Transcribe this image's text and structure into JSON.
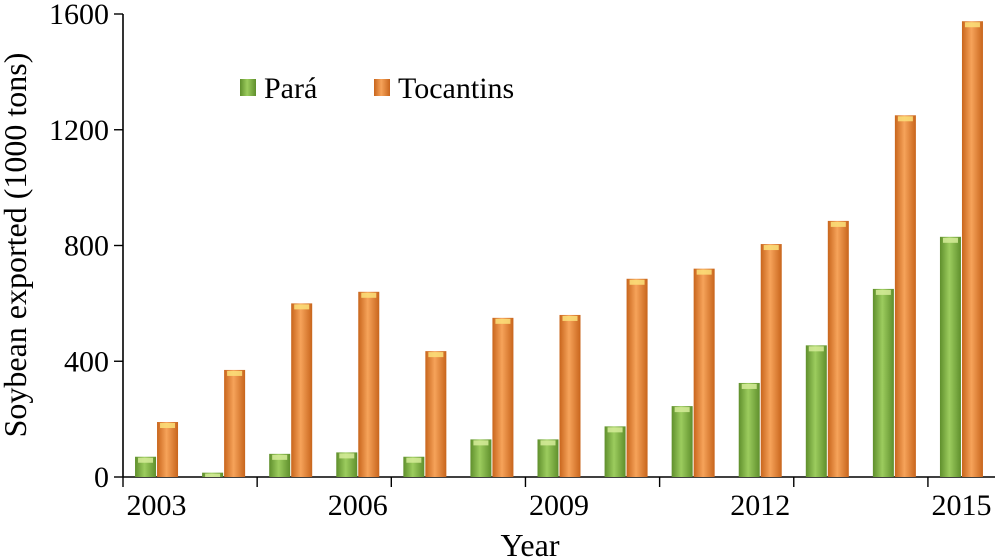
{
  "chart_data": {
    "type": "bar",
    "xlabel": "Year",
    "ylabel": "Soybean exported (1000 tons)",
    "ylim": [
      0,
      1600
    ],
    "yticks": [
      0,
      400,
      800,
      1200,
      1600
    ],
    "categories": [
      "2003",
      "2004",
      "2005",
      "2006",
      "2007",
      "2008",
      "2009",
      "2010",
      "2011",
      "2012",
      "2013",
      "2014",
      "2015"
    ],
    "xtick_labels": [
      "2003",
      "2006",
      "2009",
      "2012",
      "2015"
    ],
    "series": [
      {
        "name": "Pará",
        "color": "#7fb346",
        "values": [
          70,
          15,
          80,
          85,
          70,
          130,
          130,
          175,
          245,
          325,
          455,
          650,
          830
        ]
      },
      {
        "name": "Tocantins",
        "color": "#f08c3a",
        "values": [
          190,
          370,
          600,
          640,
          435,
          550,
          560,
          685,
          720,
          805,
          885,
          1250,
          1575
        ]
      }
    ],
    "legend_position": "top-left",
    "grid": false
  }
}
